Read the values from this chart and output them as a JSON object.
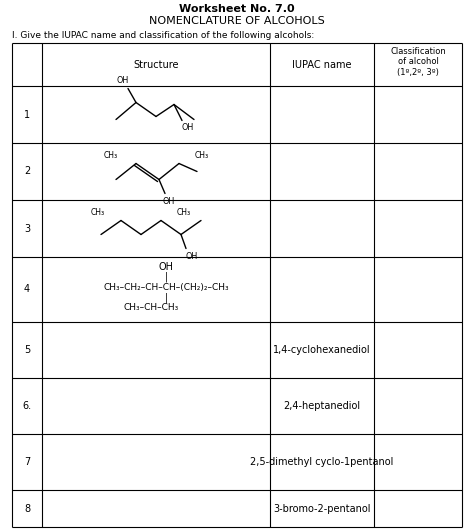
{
  "title1": "Worksheet No. 7.0",
  "title2": "NOMENCLATURE OF ALCOHOLS",
  "instruction": "I. Give the IUPAC name and classification of the following alcohols:",
  "bg_color": "#ffffff",
  "text_color": "#000000",
  "row_numbers": [
    "1",
    "2",
    "3",
    "4",
    "5",
    "6.",
    "7",
    "8"
  ],
  "iupac_names": {
    "4": "1,4-cyclohexanediol",
    "5": "2,4-heptanediol",
    "6": "2,5-dimethyl cyclo-1pentanol",
    "7": "3-bromo-2-pentanol"
  }
}
